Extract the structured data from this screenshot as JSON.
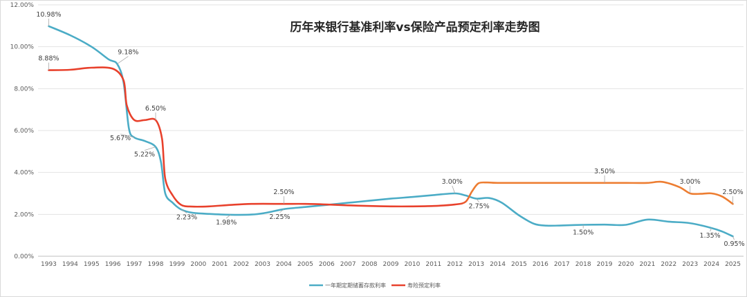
{
  "chart_data": {
    "type": "line",
    "title": "历年来银行基准利率vs保险产品预定利率走势图",
    "xlabel": "",
    "ylabel": "",
    "ylim": [
      0,
      12
    ],
    "yticks": [
      "0.00%",
      "2.00%",
      "4.00%",
      "6.00%",
      "8.00%",
      "10.00%",
      "12.00%"
    ],
    "grid": "horizontal",
    "legend_position": "bottom",
    "categories": [
      "1993",
      "1994",
      "1995",
      "1996",
      "1997",
      "1998",
      "1999",
      "2000",
      "2001",
      "2002",
      "2003",
      "2004",
      "2005",
      "2006",
      "2007",
      "2008",
      "2009",
      "2010",
      "2011",
      "2012",
      "2013",
      "2014",
      "2015",
      "2016",
      "2017",
      "2018",
      "2019",
      "2020",
      "2021",
      "2022",
      "2023",
      "2024",
      "2025"
    ],
    "series": [
      {
        "name": "一年期定期储蓄存款利率",
        "color": "#4BACC6",
        "points": [
          [
            1993,
            10.98
          ],
          [
            1994,
            10.55
          ],
          [
            1995,
            10.0
          ],
          [
            1995.8,
            9.4
          ],
          [
            1996.2,
            9.18
          ],
          [
            1996.5,
            8.3
          ],
          [
            1996.75,
            6.1
          ],
          [
            1997,
            5.67
          ],
          [
            1997.5,
            5.5
          ],
          [
            1998,
            5.22
          ],
          [
            1998.25,
            4.5
          ],
          [
            1998.45,
            3.0
          ],
          [
            1998.8,
            2.55
          ],
          [
            1999.2,
            2.23
          ],
          [
            1999.7,
            2.08
          ],
          [
            2000.5,
            2.02
          ],
          [
            2001.5,
            1.98
          ],
          [
            2002.5,
            1.99
          ],
          [
            2003.2,
            2.08
          ],
          [
            2004,
            2.25
          ],
          [
            2005,
            2.35
          ],
          [
            2006,
            2.45
          ],
          [
            2007,
            2.55
          ],
          [
            2008,
            2.65
          ],
          [
            2009,
            2.75
          ],
          [
            2010,
            2.83
          ],
          [
            2011,
            2.92
          ],
          [
            2012,
            3.0
          ],
          [
            2012.5,
            2.9
          ],
          [
            2013,
            2.75
          ],
          [
            2013.6,
            2.78
          ],
          [
            2014.2,
            2.55
          ],
          [
            2015,
            1.95
          ],
          [
            2015.7,
            1.55
          ],
          [
            2016.3,
            1.46
          ],
          [
            2017,
            1.47
          ],
          [
            2018,
            1.5
          ],
          [
            2019,
            1.51
          ],
          [
            2020,
            1.5
          ],
          [
            2021,
            1.75
          ],
          [
            2022,
            1.65
          ],
          [
            2023,
            1.58
          ],
          [
            2024,
            1.35
          ],
          [
            2024.5,
            1.18
          ],
          [
            2025,
            0.95
          ]
        ]
      },
      {
        "name": "寿险预定利率",
        "color": "#E8412C",
        "color_late": "#ED7D31",
        "color_switch_x": 2012.5,
        "points": [
          [
            1993,
            8.88
          ],
          [
            1994,
            8.9
          ],
          [
            1995,
            9.0
          ],
          [
            1996,
            8.95
          ],
          [
            1996.5,
            8.4
          ],
          [
            1996.65,
            7.2
          ],
          [
            1997,
            6.5
          ],
          [
            1997.5,
            6.5
          ],
          [
            1998,
            6.5
          ],
          [
            1998.3,
            5.6
          ],
          [
            1998.45,
            3.7
          ],
          [
            1998.8,
            2.9
          ],
          [
            1999.2,
            2.45
          ],
          [
            1999.7,
            2.37
          ],
          [
            2000.5,
            2.38
          ],
          [
            2001.5,
            2.45
          ],
          [
            2002.5,
            2.5
          ],
          [
            2004,
            2.5
          ],
          [
            2005,
            2.5
          ],
          [
            2006,
            2.47
          ],
          [
            2007,
            2.43
          ],
          [
            2008,
            2.4
          ],
          [
            2009,
            2.38
          ],
          [
            2010,
            2.38
          ],
          [
            2011,
            2.4
          ],
          [
            2012,
            2.47
          ],
          [
            2012.5,
            2.6
          ],
          [
            2012.8,
            3.1
          ],
          [
            2013.1,
            3.48
          ],
          [
            2013.5,
            3.52
          ],
          [
            2014,
            3.5
          ],
          [
            2016,
            3.5
          ],
          [
            2018,
            3.5
          ],
          [
            2019,
            3.5
          ],
          [
            2020,
            3.5
          ],
          [
            2021,
            3.5
          ],
          [
            2021.7,
            3.55
          ],
          [
            2022.5,
            3.3
          ],
          [
            2023,
            3.0
          ],
          [
            2023.5,
            2.98
          ],
          [
            2024,
            3.0
          ],
          [
            2024.5,
            2.85
          ],
          [
            2025,
            2.5
          ]
        ]
      }
    ],
    "annotations": [
      {
        "series": 0,
        "x": 1993,
        "y": 10.98,
        "text": "10.98%"
      },
      {
        "series": 0,
        "x": 1996.2,
        "y": 9.18,
        "text": "9.18%"
      },
      {
        "series": 0,
        "x": 1997,
        "y": 5.67,
        "text": "5.67%"
      },
      {
        "series": 0,
        "x": 1998,
        "y": 5.22,
        "text": "5.22%"
      },
      {
        "series": 0,
        "x": 1999.2,
        "y": 2.23,
        "text": "2.23%"
      },
      {
        "series": 0,
        "x": 2001.5,
        "y": 1.98,
        "text": "1.98%"
      },
      {
        "series": 0,
        "x": 2004,
        "y": 2.25,
        "text": "2.25%"
      },
      {
        "series": 0,
        "x": 2012,
        "y": 3.0,
        "text": "3.00%"
      },
      {
        "series": 0,
        "x": 2013,
        "y": 2.75,
        "text": "2.75%"
      },
      {
        "series": 0,
        "x": 2018,
        "y": 1.5,
        "text": "1.50%"
      },
      {
        "series": 0,
        "x": 2024,
        "y": 1.35,
        "text": "1.35%"
      },
      {
        "series": 0,
        "x": 2025,
        "y": 0.95,
        "text": "0.95%"
      },
      {
        "series": 1,
        "x": 1993,
        "y": 8.88,
        "text": "8.88%"
      },
      {
        "series": 1,
        "x": 1998,
        "y": 6.5,
        "text": "6.50%"
      },
      {
        "series": 1,
        "x": 2004,
        "y": 2.5,
        "text": "2.50%"
      },
      {
        "series": 1,
        "x": 2019,
        "y": 3.5,
        "text": "3.50%"
      },
      {
        "series": 1,
        "x": 2023,
        "y": 3.0,
        "text": "3.00%"
      },
      {
        "series": 1,
        "x": 2025,
        "y": 2.5,
        "text": "2.50%"
      }
    ]
  }
}
